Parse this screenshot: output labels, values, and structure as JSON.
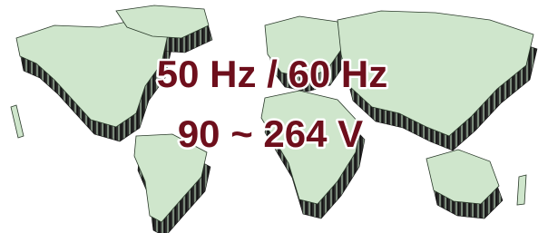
{
  "text": {
    "line1": "50 Hz / 60 Hz",
    "line2": "90 ~ 264 V"
  }
}
